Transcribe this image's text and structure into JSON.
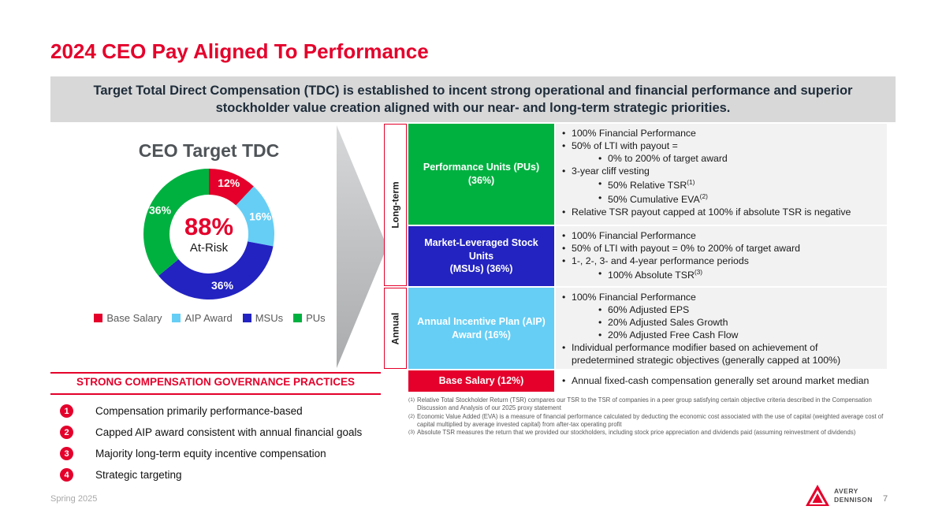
{
  "title": "2024 CEO Pay Aligned To Performance",
  "banner": {
    "text": "Target Total Direct Compensation (TDC) is established to incent strong operational and financial performance and superior stockholder value creation aligned with our near- and long-term strategic priorities."
  },
  "colors": {
    "red": "#e4002b",
    "green": "#00b140",
    "dark_blue": "#2323c1",
    "light_blue": "#66cef5",
    "banner_bg": "#d8d8d8",
    "row_bg": "#f2f2f2"
  },
  "chart_data": {
    "type": "pie",
    "subtype": "donut",
    "title": "CEO Target TDC",
    "segments": [
      {
        "label": "Base Salary",
        "value": 12,
        "color": "#e4002b"
      },
      {
        "label": "AIP Award",
        "value": 16,
        "color": "#66cef5"
      },
      {
        "label": "MSUs",
        "value": 36,
        "color": "#2323c1"
      },
      {
        "label": "PUs",
        "value": 36,
        "color": "#00b140"
      }
    ],
    "center": {
      "value": "88%",
      "label": "At-Risk"
    },
    "legend_position": "bottom"
  },
  "table": {
    "groups": [
      {
        "label": "Long-term",
        "rows": [
          0,
          1
        ]
      },
      {
        "label": "Annual",
        "rows": [
          2
        ]
      }
    ],
    "rows": [
      {
        "name": "performance-units",
        "box_lines": [
          "Performance Units (PUs)",
          "(36%)"
        ],
        "box_color": "#00b140",
        "text_bg": "#f2f2f2",
        "bullets": [
          {
            "level": 0,
            "text": "100% Financial Performance"
          },
          {
            "level": 0,
            "text": "50% of LTI with payout ="
          },
          {
            "level": 1,
            "text": "0% to 200% of target award"
          },
          {
            "level": 0,
            "text": "3-year cliff vesting"
          },
          {
            "level": 1,
            "text": "50% Relative TSR",
            "sup": "(1)"
          },
          {
            "level": 1,
            "text": "50% Cumulative EVA",
            "sup": "(2)"
          },
          {
            "level": 0,
            "text": "Relative TSR payout capped at 100% if absolute TSR is negative"
          }
        ]
      },
      {
        "name": "msus",
        "box_lines": [
          "Market-Leveraged Stock Units",
          "(MSUs) (36%)"
        ],
        "box_color": "#2323c1",
        "text_bg": "#f2f2f2",
        "bullets": [
          {
            "level": 0,
            "text": "100% Financial Performance"
          },
          {
            "level": 0,
            "text": "50% of LTI with payout = 0% to 200% of target award"
          },
          {
            "level": 0,
            "text": "1-, 2-, 3- and 4-year performance periods"
          },
          {
            "level": 1,
            "text": "100% Absolute TSR",
            "sup": "(3)"
          }
        ]
      },
      {
        "name": "aip-award",
        "box_lines": [
          "Annual Incentive Plan (AIP)",
          "Award (16%)"
        ],
        "box_color": "#66cef5",
        "text_bg": "#f2f2f2",
        "bullets": [
          {
            "level": 0,
            "text": "100% Financial Performance"
          },
          {
            "level": 1,
            "text": "60% Adjusted EPS"
          },
          {
            "level": 1,
            "text": "20% Adjusted Sales Growth"
          },
          {
            "level": 1,
            "text": "20% Adjusted Free Cash Flow"
          },
          {
            "level": 0,
            "text": "Individual performance modifier based on achievement of predetermined strategic objectives (generally capped at 100%)"
          }
        ]
      },
      {
        "name": "base-salary",
        "box_lines": [
          "Base Salary (12%)"
        ],
        "box_color": "#e4002b",
        "text_bg": "#ffffff",
        "bullets": [
          {
            "level": 0,
            "text": "Annual fixed-cash compensation generally set around market median"
          }
        ]
      }
    ]
  },
  "footnotes": [
    {
      "sup": "(1)",
      "text": "Relative Total Stockholder Return (TSR) compares our TSR to the TSR of companies in a peer group satisfying certain objective criteria described in the Compensation Discussion and Analysis of our 2025 proxy statement"
    },
    {
      "sup": "(2)",
      "text": "Economic Value Added (EVA) is a measure of financial performance calculated by deducting the economic cost associated with the use of capital (weighted average cost of capital multiplied by average invested capital) from after-tax operating profit"
    },
    {
      "sup": "(3)",
      "text": "Absolute TSR measures the return that we provided our stockholders, including stock price appreciation and dividends paid (assuming reinvestment of dividends)"
    }
  ],
  "governance": {
    "title": "STRONG COMPENSATION GOVERNANCE PRACTICES",
    "items": [
      {
        "num": "1",
        "text": "Compensation primarily performance-based"
      },
      {
        "num": "2",
        "text": "Capped AIP award consistent with annual financial goals"
      },
      {
        "num": "3",
        "text": "Majority long-term equity incentive compensation"
      },
      {
        "num": "4",
        "text": "Strategic targeting"
      }
    ]
  },
  "footer": {
    "date": "Spring 2025",
    "page": "7",
    "logo_line1": "AVERY",
    "logo_line2": "DENNISON"
  }
}
